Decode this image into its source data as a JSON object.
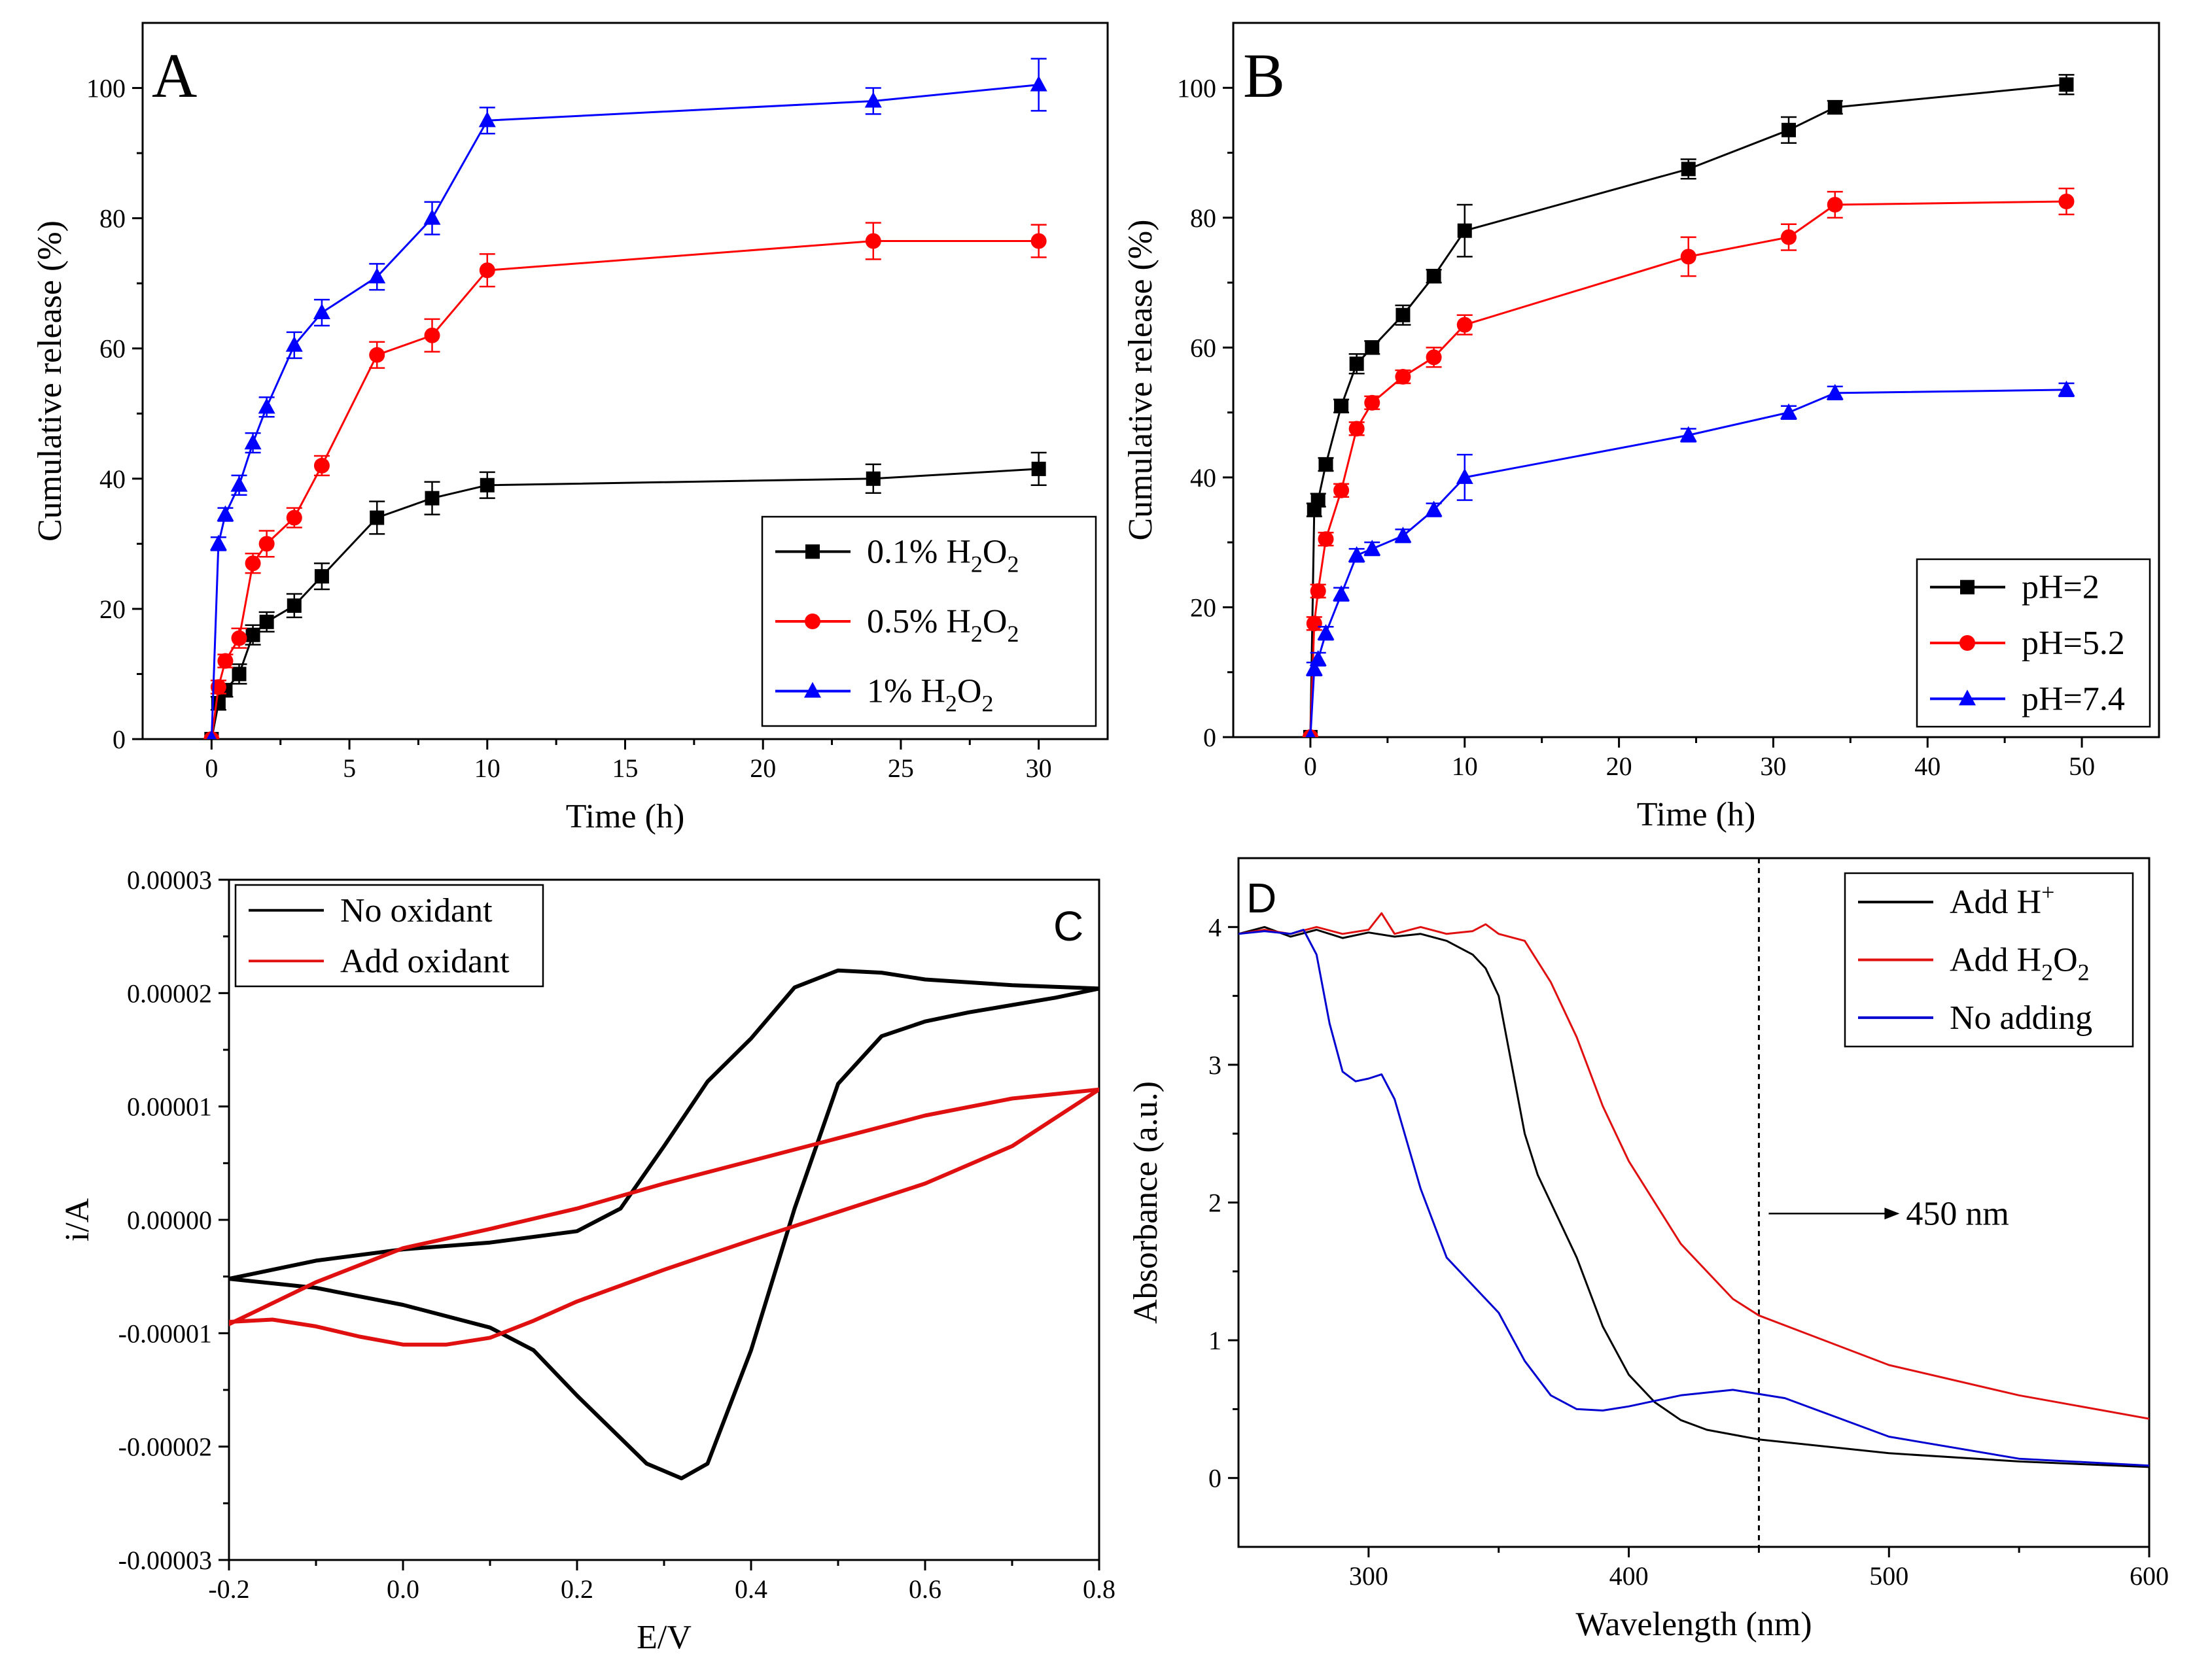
{
  "chart_data": [
    {
      "id": "A",
      "type": "line",
      "panel_label": "A",
      "title": "",
      "xlabel": "Time (h)",
      "ylabel": "Cumulative release (%)",
      "xlim": [
        -2.5,
        32.5
      ],
      "ylim": [
        0,
        110
      ],
      "xticks": [
        0,
        5,
        10,
        15,
        20,
        25,
        30
      ],
      "yticks": [
        0,
        20,
        40,
        60,
        80,
        100
      ],
      "xtick_labels": [
        "0",
        "5",
        "10",
        "15",
        "20",
        "25",
        "30"
      ],
      "ytick_labels": [
        "0",
        "20",
        "40",
        "60",
        "80",
        "100"
      ],
      "legend_position": "bottom-right",
      "series": [
        {
          "name": "0.1% H2O2",
          "legend_text": "0.1% H",
          "legend_sub1": "2",
          "legend_mid": "O",
          "legend_sub2": "2",
          "color": "#000000",
          "marker": "square",
          "x": [
            0,
            0.25,
            0.5,
            1,
            1.5,
            2,
            3,
            4,
            6,
            8,
            10,
            24,
            30
          ],
          "y": [
            0,
            5.5,
            7.5,
            10,
            16,
            18,
            20.5,
            25,
            34,
            37,
            39,
            40,
            41.5
          ],
          "err": [
            0,
            1,
            1,
            1.5,
            1.5,
            1.5,
            1.8,
            2,
            2.5,
            2.5,
            2,
            2.2,
            2.5
          ]
        },
        {
          "name": "0.5% H2O2",
          "legend_text": "0.5% H",
          "legend_sub1": "2",
          "legend_mid": "O",
          "legend_sub2": "2",
          "color": "#ff0000",
          "marker": "circle",
          "x": [
            0,
            0.25,
            0.5,
            1,
            1.5,
            2,
            3,
            4,
            6,
            8,
            10,
            24,
            30
          ],
          "y": [
            0,
            8,
            12,
            15.5,
            27,
            30,
            34,
            42,
            59,
            62,
            72,
            76.5,
            76.5
          ],
          "err": [
            0,
            1,
            1,
            1.5,
            1.5,
            2,
            1.5,
            1.5,
            2,
            2.5,
            2.5,
            2.8,
            2.5
          ]
        },
        {
          "name": "1% H2O2",
          "legend_text": "1%    H",
          "legend_sub1": "2",
          "legend_mid": "O",
          "legend_sub2": "2",
          "color": "#0000ff",
          "marker": "triangle",
          "x": [
            0,
            0.25,
            0.5,
            1,
            1.5,
            2,
            3,
            4,
            6,
            8,
            10,
            24,
            30
          ],
          "y": [
            0,
            30,
            34.5,
            39,
            45.5,
            51,
            60.5,
            65.5,
            71,
            80,
            95,
            98,
            100.5
          ],
          "err": [
            0,
            1,
            1,
            1.5,
            1.5,
            1.5,
            2,
            2,
            2,
            2.5,
            2,
            2,
            4
          ]
        }
      ]
    },
    {
      "id": "B",
      "type": "line",
      "panel_label": "B",
      "title": "",
      "xlabel": "Time (h)",
      "ylabel": "Cumulative release (%)",
      "xlim": [
        -5,
        55
      ],
      "ylim": [
        0,
        110
      ],
      "xticks": [
        0,
        10,
        20,
        30,
        40,
        50
      ],
      "yticks": [
        0,
        20,
        40,
        60,
        80,
        100
      ],
      "xtick_labels": [
        "0",
        "10",
        "20",
        "30",
        "40",
        "50"
      ],
      "ytick_labels": [
        "0",
        "20",
        "40",
        "60",
        "80",
        "100"
      ],
      "legend_position": "bottom-right",
      "series": [
        {
          "name": "pH=2",
          "color": "#000000",
          "marker": "square",
          "x": [
            0,
            0.25,
            0.5,
            1,
            2,
            3,
            4,
            6,
            8,
            10,
            24.5,
            31,
            34,
            49
          ],
          "y": [
            0,
            35,
            36.5,
            42,
            51,
            57.5,
            60,
            65,
            71,
            78,
            87.5,
            93.5,
            97,
            100.5
          ],
          "err": [
            0,
            1,
            1,
            1,
            1,
            1.5,
            1,
            1.5,
            1,
            4,
            1.5,
            2,
            1,
            1.5
          ]
        },
        {
          "name": "pH=5.2",
          "color": "#ff0000",
          "marker": "circle",
          "x": [
            0,
            0.25,
            0.5,
            1,
            2,
            3,
            4,
            6,
            8,
            10,
            24.5,
            31,
            34,
            49
          ],
          "y": [
            0,
            17.5,
            22.5,
            30.5,
            38,
            47.5,
            51.5,
            55.5,
            58.5,
            63.5,
            74,
            77,
            82,
            82.5
          ],
          "err": [
            0,
            1,
            1,
            1,
            1,
            1,
            1,
            1,
            1.5,
            1.5,
            3,
            2,
            2,
            2
          ]
        },
        {
          "name": "pH=7.4",
          "color": "#0000ff",
          "marker": "triangle",
          "x": [
            0,
            0.25,
            0.5,
            1,
            2,
            3,
            4,
            6,
            8,
            10,
            24.5,
            31,
            34,
            49
          ],
          "y": [
            0,
            10.5,
            12,
            16,
            22,
            28,
            29,
            31,
            35,
            40,
            46.5,
            50,
            53,
            53.5
          ],
          "err": [
            0,
            1,
            1,
            1,
            1,
            1,
            1,
            1,
            1,
            3.5,
            1,
            1,
            1,
            1
          ]
        }
      ]
    },
    {
      "id": "C",
      "type": "line",
      "panel_label": "C",
      "title": "",
      "xlabel": "E/V",
      "ylabel": "i/A",
      "xlim": [
        -0.2,
        0.8
      ],
      "ylim": [
        -3e-05,
        3e-05
      ],
      "xticks": [
        -0.2,
        0.0,
        0.2,
        0.4,
        0.6,
        0.8
      ],
      "yticks": [
        -3e-05,
        -2e-05,
        -1e-05,
        0.0,
        1e-05,
        2e-05,
        3e-05
      ],
      "xtick_labels": [
        "-0.2",
        "0.0",
        "0.2",
        "0.4",
        "0.6",
        "0.8"
      ],
      "ytick_labels": [
        "-0.00003",
        "-0.00002",
        "-0.00001",
        "0.00000",
        "0.00001",
        "0.00002",
        "0.00003"
      ],
      "legend_position": "top-left",
      "series": [
        {
          "name": "No  oxidant",
          "color": "#000000",
          "x": [
            -0.2,
            -0.1,
            0.0,
            0.1,
            0.2,
            0.25,
            0.3,
            0.35,
            0.4,
            0.45,
            0.5,
            0.55,
            0.6,
            0.7,
            0.8,
            0.75,
            0.65,
            0.6,
            0.55,
            0.5,
            0.45,
            0.4,
            0.35,
            0.32,
            0.28,
            0.24,
            0.2,
            0.15,
            0.1,
            0.0,
            -0.1,
            -0.2
          ],
          "y": [
            -5.2e-06,
            -3.6e-06,
            -2.6e-06,
            -2e-06,
            -1e-06,
            1e-06,
            6.5e-06,
            1.22e-05,
            1.6e-05,
            2.05e-05,
            2.2e-05,
            2.18e-05,
            2.12e-05,
            2.07e-05,
            2.04e-05,
            1.96e-05,
            1.83e-05,
            1.75e-05,
            1.62e-05,
            1.2e-05,
            1e-06,
            -1.15e-05,
            -2.15e-05,
            -2.28e-05,
            -2.15e-05,
            -1.85e-05,
            -1.55e-05,
            -1.15e-05,
            -9.5e-06,
            -7.5e-06,
            -6e-06,
            -5.2e-06
          ]
        },
        {
          "name": "Add oxidant",
          "color": "#e01010",
          "x": [
            -0.2,
            -0.1,
            0.0,
            0.1,
            0.2,
            0.3,
            0.4,
            0.5,
            0.6,
            0.7,
            0.8,
            0.75,
            0.7,
            0.6,
            0.5,
            0.4,
            0.3,
            0.2,
            0.15,
            0.1,
            0.05,
            0.0,
            -0.05,
            -0.1,
            -0.15,
            -0.2
          ],
          "y": [
            -9.2e-06,
            -5.5e-06,
            -2.5e-06,
            -8e-07,
            1e-06,
            3.2e-06,
            5.2e-06,
            7.2e-06,
            9.2e-06,
            1.07e-05,
            1.15e-05,
            9e-06,
            6.5e-06,
            3.2e-06,
            7e-07,
            -1.8e-06,
            -4.4e-06,
            -7.2e-06,
            -8.9e-06,
            -1.04e-05,
            -1.1e-05,
            -1.1e-05,
            -1.03e-05,
            -9.4e-06,
            -8.8e-06,
            -9e-06
          ]
        }
      ]
    },
    {
      "id": "D",
      "type": "line",
      "panel_label": "D",
      "title": "",
      "xlabel": "Wavelength (nm)",
      "ylabel": "Absorbance (a.u.)",
      "xlim": [
        250,
        600
      ],
      "ylim": [
        -0.5,
        4.5
      ],
      "xticks": [
        300,
        400,
        500,
        600
      ],
      "yticks": [
        0,
        1,
        2,
        3,
        4
      ],
      "xtick_labels": [
        "300",
        "400",
        "500",
        "600"
      ],
      "ytick_labels": [
        "0",
        "1",
        "2",
        "3",
        "4"
      ],
      "legend_position": "top-right",
      "annotation": {
        "text": "450 nm",
        "x": 450
      },
      "series": [
        {
          "name": "Add H+",
          "color": "#000000",
          "x": [
            250,
            260,
            270,
            280,
            290,
            300,
            310,
            320,
            330,
            340,
            345,
            350,
            355,
            360,
            365,
            370,
            380,
            390,
            400,
            410,
            420,
            430,
            450,
            500,
            550,
            600
          ],
          "y": [
            3.95,
            4.0,
            3.93,
            3.98,
            3.92,
            3.96,
            3.93,
            3.95,
            3.9,
            3.8,
            3.7,
            3.5,
            3.0,
            2.5,
            2.2,
            2.0,
            1.6,
            1.1,
            0.75,
            0.55,
            0.42,
            0.35,
            0.28,
            0.18,
            0.12,
            0.08
          ]
        },
        {
          "name": "Add H2O2",
          "legend_text": "Add H",
          "legend_sub1": "2",
          "legend_mid": "O",
          "legend_sub2": "2",
          "color": "#e01010",
          "x": [
            250,
            260,
            270,
            280,
            290,
            300,
            305,
            310,
            320,
            330,
            340,
            345,
            350,
            360,
            370,
            380,
            390,
            400,
            420,
            440,
            450,
            500,
            550,
            600
          ],
          "y": [
            3.95,
            3.98,
            3.95,
            4.0,
            3.95,
            3.98,
            4.1,
            3.95,
            4.0,
            3.95,
            3.97,
            4.02,
            3.95,
            3.9,
            3.6,
            3.2,
            2.7,
            2.3,
            1.7,
            1.3,
            1.18,
            0.82,
            0.6,
            0.43
          ]
        },
        {
          "name": "No adding",
          "color": "#0000d0",
          "x": [
            250,
            260,
            270,
            275,
            280,
            285,
            290,
            295,
            300,
            305,
            310,
            320,
            330,
            340,
            350,
            360,
            370,
            380,
            390,
            400,
            420,
            440,
            460,
            500,
            550,
            600
          ],
          "y": [
            3.95,
            3.97,
            3.95,
            3.98,
            3.8,
            3.3,
            2.95,
            2.88,
            2.9,
            2.93,
            2.75,
            2.1,
            1.6,
            1.4,
            1.2,
            0.85,
            0.6,
            0.5,
            0.49,
            0.52,
            0.6,
            0.64,
            0.58,
            0.3,
            0.14,
            0.09
          ]
        }
      ]
    }
  ]
}
